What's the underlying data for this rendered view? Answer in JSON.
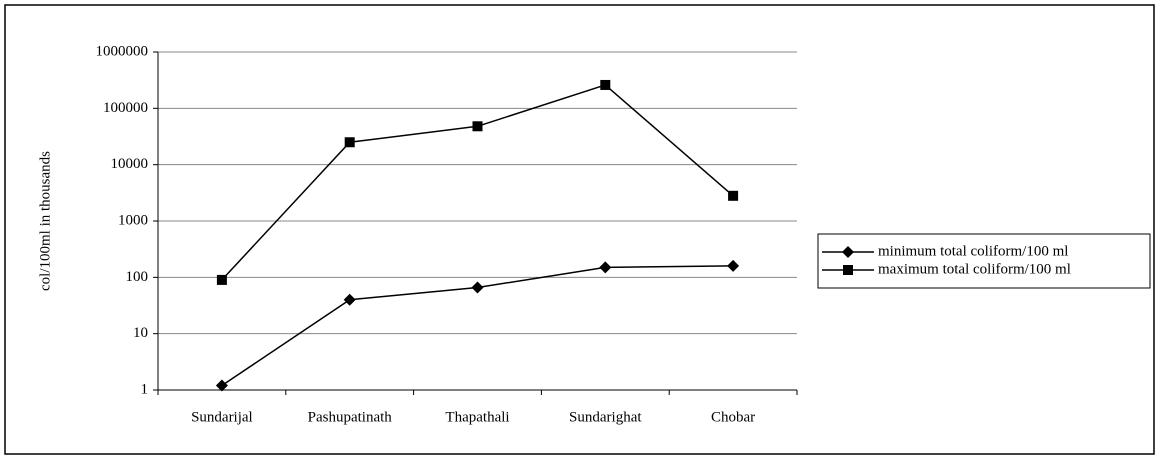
{
  "chart_data": {
    "type": "line",
    "y_label": "col/100ml in thousands",
    "categories": [
      "Sundarijal",
      "Pashupatinath",
      "Thapathali",
      "Sundarighat",
      "Chobar"
    ],
    "series": [
      {
        "name": "minimum total coliform/100 ml",
        "color": "#000000",
        "marker": "diamond",
        "values": [
          1.2,
          40,
          66,
          150,
          160
        ]
      },
      {
        "name": "maximum total coliform/100 ml",
        "color": "#000000",
        "marker": "square",
        "values": [
          90,
          25000,
          48000,
          260000,
          2800
        ]
      }
    ],
    "ylim": [
      1,
      1000000
    ],
    "yticks": [
      1,
      10,
      100,
      1000,
      10000,
      100000,
      1000000
    ],
    "log_scale": true,
    "grid": true,
    "legend": "right"
  }
}
